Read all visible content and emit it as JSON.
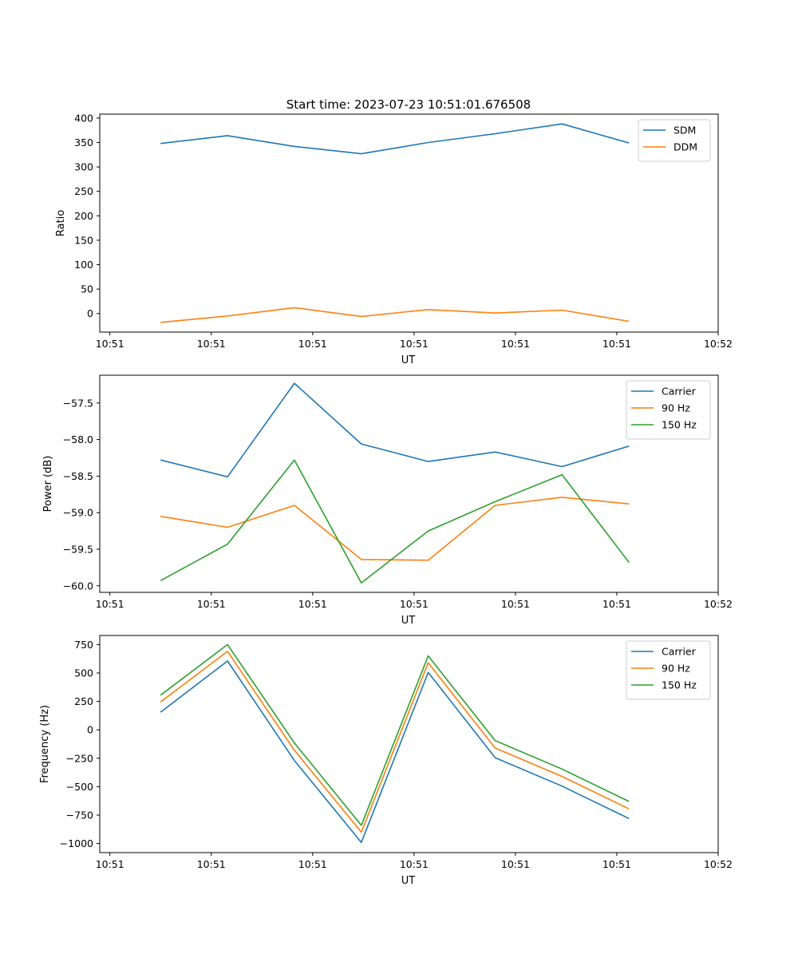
{
  "figure_title": "Start time: 2023-07-23 10:51:01.676508",
  "colors": {
    "c0": "#1f77b4",
    "c1": "#ff7f0e",
    "c2": "#2ca02c"
  },
  "chart_data": [
    {
      "type": "line",
      "title": "Start time: 2023-07-23 10:51:01.676508",
      "xlabel": "UT",
      "ylabel": "Ratio",
      "x": [
        0.5,
        1.16,
        1.82,
        2.48,
        3.14,
        3.8,
        4.46,
        5.12
      ],
      "xlim": [
        -0.1,
        6.0
      ],
      "xticks": [
        0,
        1,
        2,
        3,
        4,
        5,
        6
      ],
      "xticklabels": [
        "10:51",
        "10:51",
        "10:51",
        "10:51",
        "10:51",
        "10:51",
        "10:52"
      ],
      "ylim": [
        -38,
        408
      ],
      "yticks": [
        0,
        50,
        100,
        150,
        200,
        250,
        300,
        350,
        400
      ],
      "yticklabels": [
        "0",
        "50",
        "100",
        "150",
        "200",
        "250",
        "300",
        "350",
        "400"
      ],
      "legend_position": "top-right",
      "series": [
        {
          "name": "SDM",
          "color": "#1f77b4",
          "values": [
            348,
            364,
            342,
            327,
            350,
            368,
            388,
            349
          ]
        },
        {
          "name": "DDM",
          "color": "#ff7f0e",
          "values": [
            -18,
            -5,
            12,
            -6,
            8,
            1,
            7,
            -16
          ]
        }
      ]
    },
    {
      "type": "line",
      "title": "",
      "xlabel": "UT",
      "ylabel": "Power (dB)",
      "x": [
        0.5,
        1.16,
        1.82,
        2.48,
        3.14,
        3.8,
        4.46,
        5.12
      ],
      "xlim": [
        -0.1,
        6.0
      ],
      "xticks": [
        0,
        1,
        2,
        3,
        4,
        5,
        6
      ],
      "xticklabels": [
        "10:51",
        "10:51",
        "10:51",
        "10:51",
        "10:51",
        "10:51",
        "10:52"
      ],
      "ylim": [
        -60.09,
        -57.12
      ],
      "yticks": [
        -60.0,
        -59.5,
        -59.0,
        -58.5,
        -58.0,
        -57.5
      ],
      "yticklabels": [
        "−60.0",
        "−59.5",
        "−59.0",
        "−58.5",
        "−58.0",
        "−57.5"
      ],
      "legend_position": "top-right",
      "series": [
        {
          "name": "Carrier",
          "color": "#1f77b4",
          "values": [
            -58.28,
            -58.51,
            -57.23,
            -58.06,
            -58.3,
            -58.17,
            -58.37,
            -58.09
          ]
        },
        {
          "name": "90 Hz",
          "color": "#ff7f0e",
          "values": [
            -59.05,
            -59.2,
            -58.9,
            -59.64,
            -59.65,
            -58.9,
            -58.79,
            -58.88
          ]
        },
        {
          "name": "150 Hz",
          "color": "#2ca02c",
          "values": [
            -59.93,
            -59.43,
            -58.28,
            -59.96,
            -59.25,
            -58.85,
            -58.48,
            -59.68
          ]
        }
      ]
    },
    {
      "type": "line",
      "title": "",
      "xlabel": "UT",
      "ylabel": "Frequency (Hz)",
      "x": [
        0.5,
        1.16,
        1.82,
        2.48,
        3.14,
        3.8,
        4.46,
        5.12
      ],
      "xlim": [
        -0.1,
        6.0
      ],
      "xticks": [
        0,
        1,
        2,
        3,
        4,
        5,
        6
      ],
      "xticklabels": [
        "10:51",
        "10:51",
        "10:51",
        "10:51",
        "10:51",
        "10:51",
        "10:52"
      ],
      "ylim": [
        -1080,
        830
      ],
      "yticks": [
        -1000,
        -750,
        -500,
        -250,
        0,
        250,
        500,
        750
      ],
      "yticklabels": [
        "−1000",
        "−750",
        "−500",
        "−250",
        "0",
        "250",
        "500",
        "750"
      ],
      "legend_position": "top-right",
      "series": [
        {
          "name": "Carrier",
          "color": "#1f77b4",
          "values": [
            155,
            605,
            -270,
            -990,
            505,
            -245,
            -495,
            -780
          ]
        },
        {
          "name": "90 Hz",
          "color": "#ff7f0e",
          "values": [
            245,
            690,
            -180,
            -900,
            590,
            -160,
            -410,
            -695
          ]
        },
        {
          "name": "150 Hz",
          "color": "#2ca02c",
          "values": [
            305,
            750,
            -115,
            -840,
            650,
            -95,
            -345,
            -630
          ]
        }
      ]
    }
  ]
}
